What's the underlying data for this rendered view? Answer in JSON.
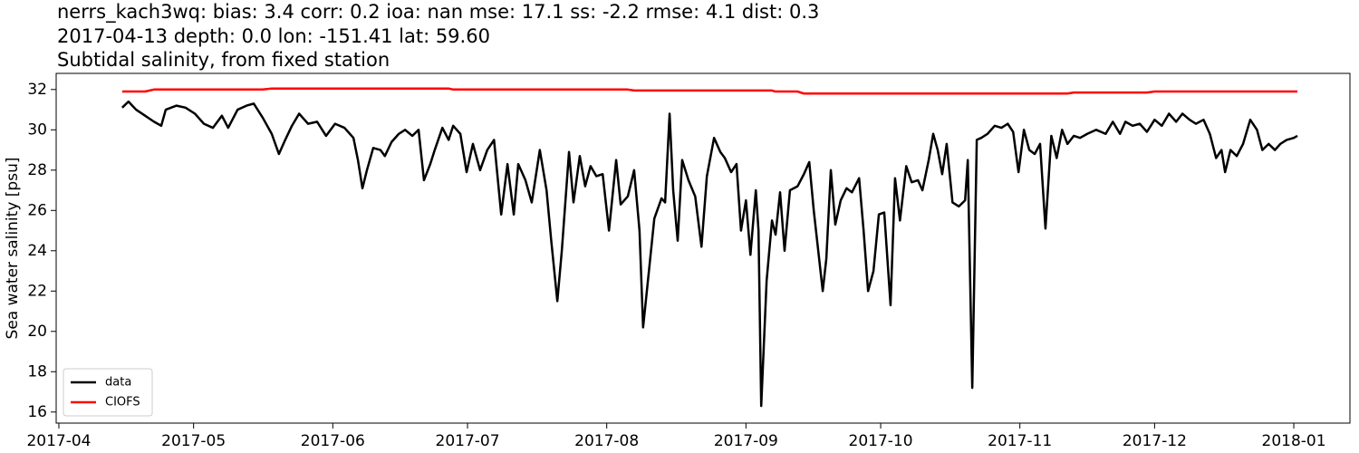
{
  "chart_data": {
    "type": "line",
    "title": [
      "nerrs_kach3wq: bias: 3.4  corr: 0.2  ioa: nan  mse: 17.1  ss: -2.2  rmse: 4.1  dist: 0.3",
      "2017-04-13 depth: 0.0 lon: -151.41 lat: 59.60",
      "Subtidal salinity, from fixed station"
    ],
    "y_label": "Sea water salinity [psu]",
    "x": [
      104.1,
      105.5,
      107.2,
      109.2,
      111.2,
      112.8,
      113.8,
      116.2,
      118.2,
      120.3,
      122.3,
      124.3,
      126.3,
      127.7,
      129.8,
      131.8,
      133.4,
      135.4,
      137.4,
      139.0,
      140.4,
      141.9,
      143.5,
      145.5,
      147.5,
      149.5,
      151.5,
      153.6,
      155.6,
      156.6,
      157.6,
      158.6,
      160.0,
      161.6,
      162.6,
      164.1,
      165.7,
      167.1,
      168.7,
      170.1,
      171.3,
      172.7,
      173.7,
      175.4,
      176.8,
      177.8,
      179.4,
      180.8,
      182.2,
      183.8,
      185.4,
      186.9,
      188.5,
      189.9,
      191.3,
      192.3,
      193.9,
      195.3,
      197.1,
      198.6,
      199.6,
      201.0,
      202.0,
      203.6,
      204.6,
      206.0,
      207.2,
      208.4,
      209.7,
      211.1,
      212.5,
      214.1,
      215.1,
      216.7,
      218.1,
      219.3,
      220.1,
      221.4,
      222.6,
      224.2,
      225.0,
      226.0,
      226.8,
      227.8,
      228.8,
      230.2,
      231.7,
      233.1,
      234.3,
      235.9,
      237.3,
      238.3,
      239.7,
      240.9,
      241.9,
      243.0,
      244.0,
      245.2,
      245.8,
      246.4,
      247.6,
      248.8,
      249.6,
      250.6,
      251.6,
      252.8,
      254.5,
      255.9,
      257.1,
      258.1,
      259.1,
      260.1,
      260.9,
      261.9,
      262.9,
      264.1,
      265.4,
      266.6,
      268.2,
      269.2,
      270.2,
      271.4,
      272.6,
      273.8,
      275.2,
      276.2,
      277.3,
      278.7,
      279.9,
      281.3,
      282.3,
      283.7,
      284.7,
      285.7,
      286.7,
      287.7,
      289.0,
      290.4,
      291.8,
      292.4,
      293.4,
      294.4,
      295.4,
      296.8,
      298.4,
      299.9,
      301.3,
      302.5,
      303.7,
      304.9,
      306.1,
      307.3,
      308.5,
      309.7,
      311.0,
      312.2,
      313.4,
      314.6,
      316.0,
      317.4,
      319.0,
      321.0,
      323.1,
      324.7,
      326.3,
      327.5,
      329.1,
      330.7,
      332.3,
      334.0,
      335.6,
      337.2,
      338.8,
      340.2,
      341.8,
      343.2,
      344.9,
      346.3,
      347.7,
      348.9,
      349.7,
      350.9,
      352.3,
      353.7,
      355.3,
      356.8,
      358.0,
      359.4,
      360.8,
      362.0,
      363.4,
      365.0,
      365.8
    ],
    "series": [
      {
        "name": "data",
        "color": "#000000",
        "values": [
          31.1,
          31.4,
          31.0,
          30.7,
          30.4,
          30.2,
          31.0,
          31.2,
          31.1,
          30.8,
          30.3,
          30.1,
          30.7,
          30.1,
          31.0,
          31.2,
          31.3,
          30.6,
          29.8,
          28.8,
          29.5,
          30.2,
          30.8,
          30.3,
          30.4,
          29.7,
          30.3,
          30.1,
          29.6,
          28.5,
          27.1,
          28.0,
          29.1,
          29.0,
          28.7,
          29.4,
          29.8,
          30.0,
          29.7,
          30.0,
          27.5,
          28.3,
          29.0,
          30.1,
          29.5,
          30.2,
          29.8,
          27.9,
          29.3,
          28.0,
          29.0,
          29.5,
          25.8,
          28.3,
          25.8,
          28.3,
          27.5,
          26.4,
          29.0,
          27.0,
          24.6,
          21.5,
          24.0,
          28.9,
          26.4,
          28.7,
          27.2,
          28.2,
          27.7,
          27.8,
          25.0,
          28.5,
          26.3,
          26.7,
          28.0,
          25.0,
          20.2,
          23.0,
          25.6,
          26.6,
          26.4,
          30.8,
          27.0,
          24.5,
          28.5,
          27.5,
          26.7,
          24.2,
          27.7,
          29.6,
          28.9,
          28.6,
          27.9,
          28.3,
          25.0,
          26.5,
          23.8,
          27.0,
          25.0,
          16.3,
          22.5,
          25.5,
          24.8,
          26.9,
          24.0,
          27.0,
          27.2,
          27.8,
          28.4,
          26.0,
          24.0,
          22.0,
          23.6,
          28.0,
          25.3,
          26.5,
          27.1,
          26.9,
          27.6,
          25.0,
          22.0,
          23.0,
          25.8,
          25.9,
          21.3,
          27.6,
          25.5,
          28.2,
          27.4,
          27.5,
          27.0,
          28.5,
          29.8,
          29.0,
          27.8,
          29.3,
          26.4,
          26.2,
          26.5,
          28.5,
          17.2,
          29.5,
          29.6,
          29.8,
          30.2,
          30.1,
          30.3,
          29.9,
          27.9,
          30.0,
          29.0,
          28.8,
          29.3,
          25.1,
          29.7,
          28.6,
          30.0,
          29.3,
          29.7,
          29.6,
          29.8,
          30.0,
          29.8,
          30.4,
          29.8,
          30.4,
          30.2,
          30.3,
          29.9,
          30.5,
          30.2,
          30.8,
          30.4,
          30.8,
          30.5,
          30.3,
          30.5,
          29.8,
          28.6,
          29.0,
          27.9,
          29.0,
          28.7,
          29.3,
          30.5,
          30.0,
          29.0,
          29.3,
          29.0,
          29.3,
          29.5,
          29.6,
          29.7
        ]
      },
      {
        "name": "CIOFS",
        "color": "#ff0000",
        "values": [
          31.9,
          31.9,
          31.9,
          31.9,
          32,
          32,
          32,
          32,
          32,
          32,
          32,
          32,
          32,
          32,
          32,
          32,
          32,
          32,
          32.05,
          32.05,
          32.05,
          32.05,
          32.05,
          32.05,
          32.05,
          32.05,
          32.05,
          32.05,
          32.05,
          32.05,
          32.05,
          32.05,
          32.05,
          32.05,
          32.05,
          32.05,
          32.05,
          32.05,
          32.05,
          32.05,
          32.05,
          32.05,
          32.05,
          32.05,
          32.05,
          32,
          32,
          32,
          32,
          32,
          32,
          32,
          32,
          32,
          32,
          32,
          32,
          32,
          32,
          32,
          32,
          32,
          32,
          32,
          32,
          32,
          32,
          32,
          32,
          32,
          32,
          32,
          32,
          32,
          31.95,
          31.95,
          31.95,
          31.95,
          31.95,
          31.95,
          31.95,
          31.95,
          31.95,
          31.95,
          31.95,
          31.95,
          31.95,
          31.95,
          31.95,
          31.95,
          31.95,
          31.95,
          31.95,
          31.95,
          31.95,
          31.95,
          31.95,
          31.95,
          31.95,
          31.95,
          31.95,
          31.95,
          31.9,
          31.9,
          31.9,
          31.9,
          31.9,
          31.8,
          31.8,
          31.8,
          31.8,
          31.8,
          31.8,
          31.8,
          31.8,
          31.8,
          31.8,
          31.8,
          31.8,
          31.8,
          31.8,
          31.8,
          31.8,
          31.8,
          31.8,
          31.8,
          31.8,
          31.8,
          31.8,
          31.8,
          31.8,
          31.8,
          31.8,
          31.8,
          31.8,
          31.8,
          31.8,
          31.8,
          31.8,
          31.8,
          31.8,
          31.8,
          31.8,
          31.8,
          31.8,
          31.8,
          31.8,
          31.8,
          31.8,
          31.8,
          31.8,
          31.8,
          31.8,
          31.8,
          31.8,
          31.8,
          31.8,
          31.8,
          31.85,
          31.85,
          31.85,
          31.85,
          31.85,
          31.85,
          31.85,
          31.85,
          31.85,
          31.85,
          31.85,
          31.9,
          31.9,
          31.9,
          31.9,
          31.9,
          31.9,
          31.9,
          31.9,
          31.9,
          31.9,
          31.9,
          31.9,
          31.9,
          31.9,
          31.9,
          31.9,
          31.9,
          31.9,
          31.9,
          31.9,
          31.9,
          31.9,
          31.9,
          31.9
        ]
      }
    ],
    "xlim": [
      89.4,
      377.5
    ],
    "xticks": [
      {
        "value": 90,
        "label": "2017-04"
      },
      {
        "value": 120,
        "label": "2017-05"
      },
      {
        "value": 151,
        "label": "2017-06"
      },
      {
        "value": 181,
        "label": "2017-07"
      },
      {
        "value": 212,
        "label": "2017-08"
      },
      {
        "value": 243,
        "label": "2017-09"
      },
      {
        "value": 273,
        "label": "2017-10"
      },
      {
        "value": 304,
        "label": "2017-11"
      },
      {
        "value": 334,
        "label": "2017-12"
      },
      {
        "value": 365,
        "label": "2018-01"
      }
    ],
    "ylim": [
      15.45,
      32.8
    ],
    "yticks": [
      16,
      18,
      20,
      22,
      24,
      26,
      28,
      30,
      32
    ],
    "grid": false,
    "legend": "lower-left"
  }
}
